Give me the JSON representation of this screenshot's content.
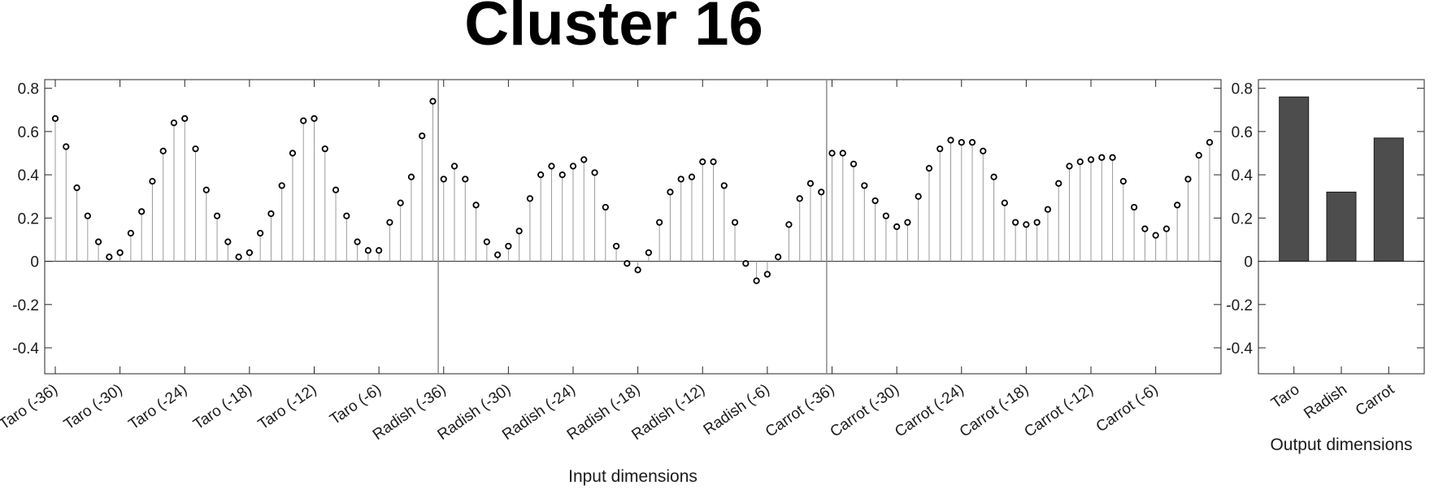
{
  "title": "Cluster 16",
  "chart_data": [
    {
      "type": "stem",
      "xlabel": "Input dimensions",
      "ylabel": "",
      "ylim": [
        -0.52,
        0.84
      ],
      "yticks": [
        -0.4,
        -0.2,
        0,
        0.2,
        0.4,
        0.6,
        0.8
      ],
      "ytick_labels": [
        "-0.4",
        "-0.2",
        "0",
        "0.2",
        "0.4",
        "0.6",
        "0.8"
      ],
      "grid": false,
      "xtick_labels": [
        "Taro (-36)",
        "Taro (-30)",
        "Taro (-24)",
        "Taro (-18)",
        "Taro (-12)",
        "Taro (-6)",
        "Radish (-36)",
        "Radish (-30)",
        "Radish (-24)",
        "Radish (-18)",
        "Radish (-12)",
        "Radish (-6)",
        "Carrot (-36)",
        "Carrot (-30)",
        "Carrot (-24)",
        "Carrot (-18)",
        "Carrot (-12)",
        "Carrot (-6)"
      ],
      "groups": [
        "Taro",
        "Radish",
        "Carrot"
      ],
      "values": [
        0.66,
        0.53,
        0.34,
        0.21,
        0.09,
        0.02,
        0.04,
        0.13,
        0.23,
        0.37,
        0.51,
        0.64,
        0.66,
        0.52,
        0.33,
        0.21,
        0.09,
        0.02,
        0.04,
        0.13,
        0.22,
        0.35,
        0.5,
        0.65,
        0.66,
        0.52,
        0.33,
        0.21,
        0.09,
        0.05,
        0.05,
        0.18,
        0.27,
        0.39,
        0.58,
        0.74,
        0.38,
        0.44,
        0.38,
        0.26,
        0.09,
        0.03,
        0.07,
        0.14,
        0.29,
        0.4,
        0.44,
        0.4,
        0.44,
        0.47,
        0.41,
        0.25,
        0.07,
        -0.01,
        -0.04,
        0.04,
        0.18,
        0.32,
        0.38,
        0.39,
        0.46,
        0.46,
        0.35,
        0.18,
        -0.01,
        -0.09,
        -0.06,
        0.02,
        0.17,
        0.29,
        0.36,
        0.32,
        0.5,
        0.5,
        0.45,
        0.35,
        0.28,
        0.21,
        0.16,
        0.18,
        0.3,
        0.43,
        0.52,
        0.56,
        0.55,
        0.55,
        0.51,
        0.39,
        0.27,
        0.18,
        0.17,
        0.18,
        0.24,
        0.36,
        0.44,
        0.46,
        0.47,
        0.48,
        0.48,
        0.37,
        0.25,
        0.15,
        0.12,
        0.15,
        0.26,
        0.38,
        0.49,
        0.55
      ]
    },
    {
      "type": "bar",
      "xlabel": "Output dimensions",
      "ylabel": "",
      "categories": [
        "Taro",
        "Radish",
        "Carrot"
      ],
      "values": [
        0.76,
        0.32,
        0.57
      ],
      "ylim": [
        -0.52,
        0.84
      ],
      "yticks": [
        -0.4,
        -0.2,
        0,
        0.2,
        0.4,
        0.6,
        0.8
      ],
      "ytick_labels": [
        "-0.4",
        "-0.2",
        "0",
        "0.2",
        "0.4",
        "0.6",
        "0.8"
      ],
      "grid": false,
      "bar_color": "#4d4d4d"
    }
  ]
}
